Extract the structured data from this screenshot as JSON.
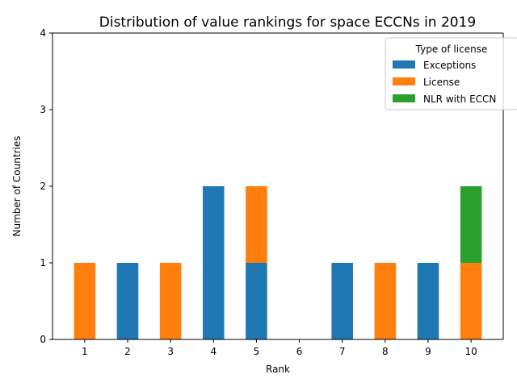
{
  "chart_data": {
    "type": "bar",
    "stacked": true,
    "title": "Distribution of value rankings for space ECCNs in 2019",
    "xlabel": "Rank",
    "ylabel": "Number of Countries",
    "categories": [
      "1",
      "2",
      "3",
      "4",
      "5",
      "6",
      "7",
      "8",
      "9",
      "10"
    ],
    "ylim": [
      0,
      4
    ],
    "yticks": [
      0,
      1,
      2,
      3,
      4
    ],
    "grid": false,
    "legend": {
      "title": "Type of license",
      "placement": "top-right"
    },
    "series": [
      {
        "name": "Exceptions",
        "color": "#1f77b4",
        "values": [
          0,
          1,
          0,
          2,
          1,
          0,
          1,
          0,
          1,
          0
        ]
      },
      {
        "name": "License",
        "color": "#ff7f0e",
        "values": [
          1,
          0,
          1,
          0,
          1,
          0,
          0,
          1,
          0,
          1
        ]
      },
      {
        "name": "NLR with ECCN",
        "color": "#2ca02c",
        "values": [
          0,
          0,
          0,
          0,
          0,
          0,
          0,
          0,
          0,
          1
        ]
      }
    ]
  }
}
